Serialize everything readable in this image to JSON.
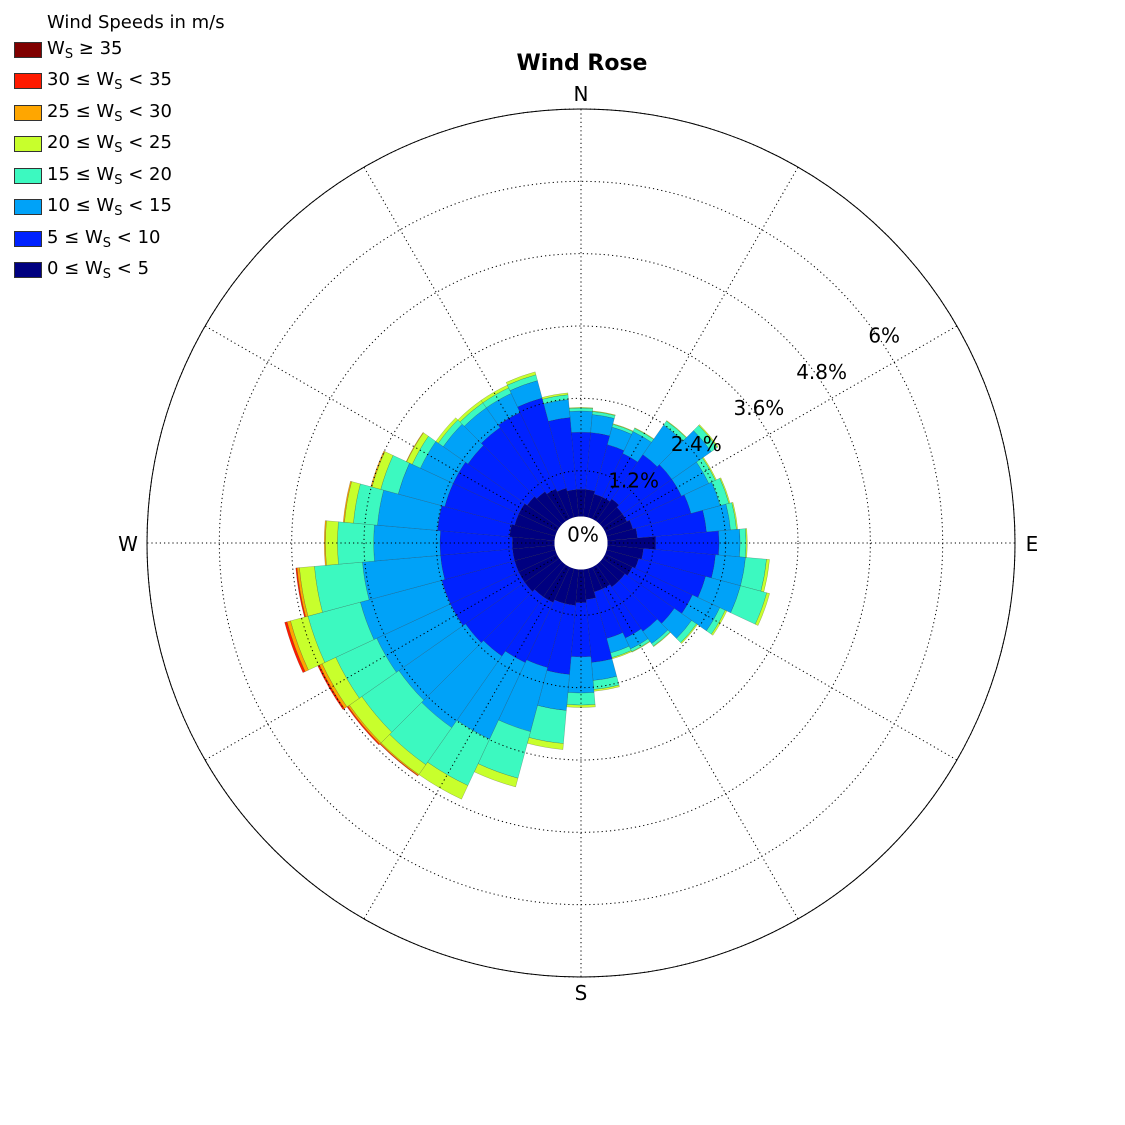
{
  "chart_data": {
    "type": "polar-stacked-bar",
    "title": "Wind Rose",
    "direction_labels": {
      "north": "N",
      "east": "E",
      "south": "S",
      "west": "W"
    },
    "radial_ticks": [
      "0%",
      "1.2%",
      "2.4%",
      "3.6%",
      "4.8%",
      "6%"
    ],
    "radial_max": 7.2,
    "legend_title": "Wind Speeds in m/s",
    "bins": [
      {
        "label": "0 ≤ WS < 5",
        "color": "#000080"
      },
      {
        "label": "5 ≤ WS < 10",
        "color": "#0022ff"
      },
      {
        "label": "10 ≤ WS < 15",
        "color": "#00a2f8"
      },
      {
        "label": "15 ≤ WS < 20",
        "color": "#3cf9c0"
      },
      {
        "label": "20 ≤ WS < 25",
        "color": "#c8ff2c"
      },
      {
        "label": "25 ≤ WS < 30",
        "color": "#ffa600"
      },
      {
        "label": "30 ≤ WS < 35",
        "color": "#ff1a00"
      },
      {
        "label": "WS ≥ 35",
        "color": "#800000"
      }
    ],
    "sector_count": 36,
    "sector_start_deg": 0,
    "sector_step_deg": 10,
    "center_radius_percent": 0.44,
    "sectors": [
      [
        0.45,
        0.95,
        0.35,
        0.05,
        0.01,
        0,
        0,
        0
      ],
      [
        0.45,
        0.95,
        0.3,
        0.05,
        0.01,
        0,
        0,
        0
      ],
      [
        0.4,
        0.85,
        0.3,
        0.05,
        0.01,
        0,
        0,
        0
      ],
      [
        0.4,
        0.8,
        0.4,
        0.06,
        0.01,
        0,
        0,
        0
      ],
      [
        0.45,
        0.9,
        0.6,
        0.08,
        0.01,
        0,
        0,
        0
      ],
      [
        0.4,
        1.0,
        0.8,
        0.12,
        0.02,
        0,
        0,
        0
      ],
      [
        0.4,
        1.0,
        0.5,
        0.12,
        0.02,
        0,
        0,
        0
      ],
      [
        0.45,
        1.0,
        0.5,
        0.15,
        0.02,
        0,
        0,
        0
      ],
      [
        0.5,
        1.15,
        0.4,
        0.1,
        0.02,
        0,
        0,
        0
      ],
      [
        0.8,
        1.05,
        0.35,
        0.1,
        0.02,
        0,
        0,
        0
      ],
      [
        0.6,
        1.2,
        0.5,
        0.35,
        0.05,
        0,
        0,
        0
      ],
      [
        0.55,
        1.15,
        0.6,
        0.45,
        0.05,
        0,
        0,
        0
      ],
      [
        0.5,
        1.1,
        0.5,
        0.1,
        0.03,
        0,
        0,
        0
      ],
      [
        0.45,
        1.0,
        0.35,
        0.1,
        0.02,
        0,
        0,
        0
      ],
      [
        0.45,
        0.9,
        0.25,
        0.05,
        0.01,
        0,
        0,
        0
      ],
      [
        0.4,
        0.9,
        0.2,
        0.05,
        0.01,
        0,
        0,
        0
      ],
      [
        0.4,
        0.8,
        0.25,
        0.08,
        0.02,
        0,
        0,
        0
      ],
      [
        0.5,
        1.05,
        0.3,
        0.15,
        0.03,
        0,
        0,
        0
      ],
      [
        0.55,
        0.9,
        0.6,
        0.2,
        0.04,
        0,
        0,
        0
      ],
      [
        0.6,
        1.15,
        0.6,
        0.55,
        0.1,
        0,
        0,
        0
      ],
      [
        0.6,
        1.1,
        1.1,
        0.8,
        0.15,
        0,
        0,
        0
      ],
      [
        0.65,
        1.1,
        1.4,
        0.85,
        0.25,
        0,
        0,
        0
      ],
      [
        0.65,
        1.2,
        1.45,
        0.75,
        0.2,
        0.02,
        0.01,
        0
      ],
      [
        0.7,
        1.2,
        1.35,
        0.75,
        0.25,
        0.03,
        0.02,
        0
      ],
      [
        0.7,
        1.25,
        1.35,
        0.75,
        0.25,
        0.05,
        0.03,
        0
      ],
      [
        0.7,
        1.25,
        1.4,
        0.9,
        0.3,
        0.06,
        0.04,
        0
      ],
      [
        0.7,
        1.2,
        1.3,
        0.8,
        0.25,
        0.04,
        0.02,
        0
      ],
      [
        0.7,
        1.2,
        1.1,
        0.6,
        0.2,
        0.02,
        0,
        0
      ],
      [
        0.75,
        1.2,
        1.0,
        0.4,
        0.15,
        0.02,
        0,
        0
      ],
      [
        0.7,
        1.2,
        0.8,
        0.3,
        0.15,
        0.02,
        0,
        0
      ],
      [
        0.7,
        1.2,
        0.6,
        0.15,
        0.1,
        0.01,
        0,
        0
      ],
      [
        0.65,
        1.2,
        0.5,
        0.1,
        0.05,
        0,
        0,
        0
      ],
      [
        0.6,
        1.3,
        0.4,
        0.1,
        0.05,
        0,
        0,
        0
      ],
      [
        0.55,
        1.4,
        0.35,
        0.1,
        0.05,
        0,
        0,
        0
      ],
      [
        0.5,
        1.55,
        0.3,
        0.1,
        0.05,
        0,
        0,
        0
      ],
      [
        0.45,
        1.2,
        0.3,
        0.08,
        0.03,
        0,
        0,
        0
      ]
    ]
  }
}
